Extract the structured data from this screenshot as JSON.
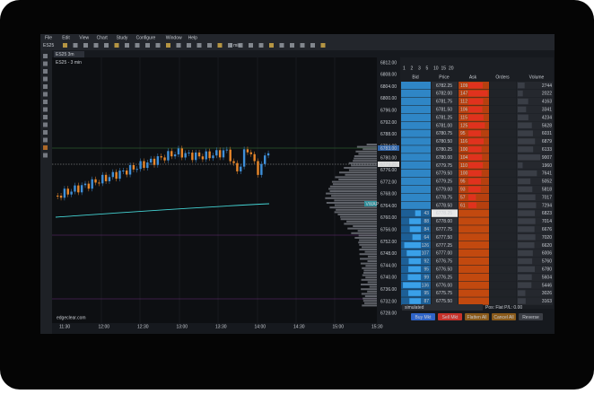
{
  "menu": [
    "File",
    "Edit",
    "View",
    "Chart",
    "Study",
    "Configure",
    "Window",
    "Help"
  ],
  "toolbar": {
    "symbol": "ES25",
    "interval": "3 min"
  },
  "tab": "ES25 3m",
  "chart": {
    "label": "ES25 - 3 min",
    "price_axis": [
      "6812.00",
      "6808.00",
      "6804.00",
      "6800.00",
      "6796.00",
      "6792.00",
      "6788.00",
      "6784.00",
      "6780.00",
      "6776.00",
      "6772.00",
      "6768.00",
      "6764.00",
      "6760.00",
      "6756.00",
      "6752.00",
      "6748.00",
      "6744.00",
      "6740.00",
      "6736.00",
      "6732.00",
      "6728.00"
    ],
    "markers": {
      "high": "6783.00",
      "last": "6779.25",
      "vwap": "VWAP"
    },
    "time_axis": [
      "11:30",
      "12:00",
      "12:30",
      "13:00",
      "13:30",
      "14:00",
      "14:30",
      "15:00",
      "15:30"
    ],
    "watermark": "edgeclear.com"
  },
  "dom": {
    "depth_tabs": [
      "1",
      "2",
      "3",
      "5",
      "10",
      "15",
      "20"
    ],
    "headers": [
      "Bid",
      "Price",
      "Ask",
      "Orders",
      "Volume"
    ],
    "rows": [
      {
        "price": "6782.25",
        "ask": "109",
        "volume": "2744"
      },
      {
        "price": "6782.00",
        "ask": "147",
        "volume": "2022"
      },
      {
        "price": "6781.75",
        "ask": "112",
        "volume": "4163"
      },
      {
        "price": "6781.50",
        "ask": "106",
        "volume": "3341"
      },
      {
        "price": "6781.25",
        "ask": "115",
        "volume": "4234"
      },
      {
        "price": "6781.00",
        "ask": "125",
        "volume": "5628"
      },
      {
        "price": "6780.75",
        "ask": "95",
        "volume": "6031"
      },
      {
        "price": "6780.50",
        "ask": "116",
        "volume": "6879"
      },
      {
        "price": "6780.25",
        "ask": "100",
        "volume": "6133"
      },
      {
        "price": "6780.00",
        "ask": "104",
        "volume": "9007"
      },
      {
        "price": "6779.75",
        "ask": "110",
        "volume": "1960"
      },
      {
        "price": "6779.50",
        "ask": "100",
        "volume": "7641"
      },
      {
        "price": "6779.25",
        "ask": "95",
        "volume": "5052"
      },
      {
        "price": "6779.00",
        "ask": "93",
        "volume": "5818"
      },
      {
        "price": "6778.75",
        "ask": "57",
        "volume": "7017"
      },
      {
        "price": "6778.50",
        "ask": "61",
        "volume": "7294"
      },
      {
        "price": "6778.25",
        "bid": "43",
        "volume": "6823"
      },
      {
        "price": "6778.00",
        "bid": "88",
        "volume": "7014"
      },
      {
        "price": "6777.75",
        "bid": "84",
        "volume": "6676"
      },
      {
        "price": "6777.50",
        "bid": "64",
        "volume": "7020"
      },
      {
        "price": "6777.25",
        "bid": "126",
        "volume": "6620"
      },
      {
        "price": "6777.00",
        "bid": "107",
        "volume": "6006"
      },
      {
        "price": "6776.75",
        "bid": "92",
        "volume": "5760"
      },
      {
        "price": "6776.50",
        "bid": "95",
        "volume": "6780"
      },
      {
        "price": "6776.25",
        "bid": "99",
        "volume": "5604"
      },
      {
        "price": "6776.00",
        "bid": "136",
        "volume": "5446"
      },
      {
        "price": "6775.75",
        "bid": "95",
        "volume": "3026"
      },
      {
        "price": "6775.50",
        "bid": "87",
        "volume": "3163"
      }
    ]
  },
  "account": "simulated",
  "position": "Pos: Flat  P/L: 0.00",
  "buttons": [
    "Buy Mkt",
    "Sell Mkt",
    "Flatten All",
    "Cancel All",
    "Reverse"
  ]
}
